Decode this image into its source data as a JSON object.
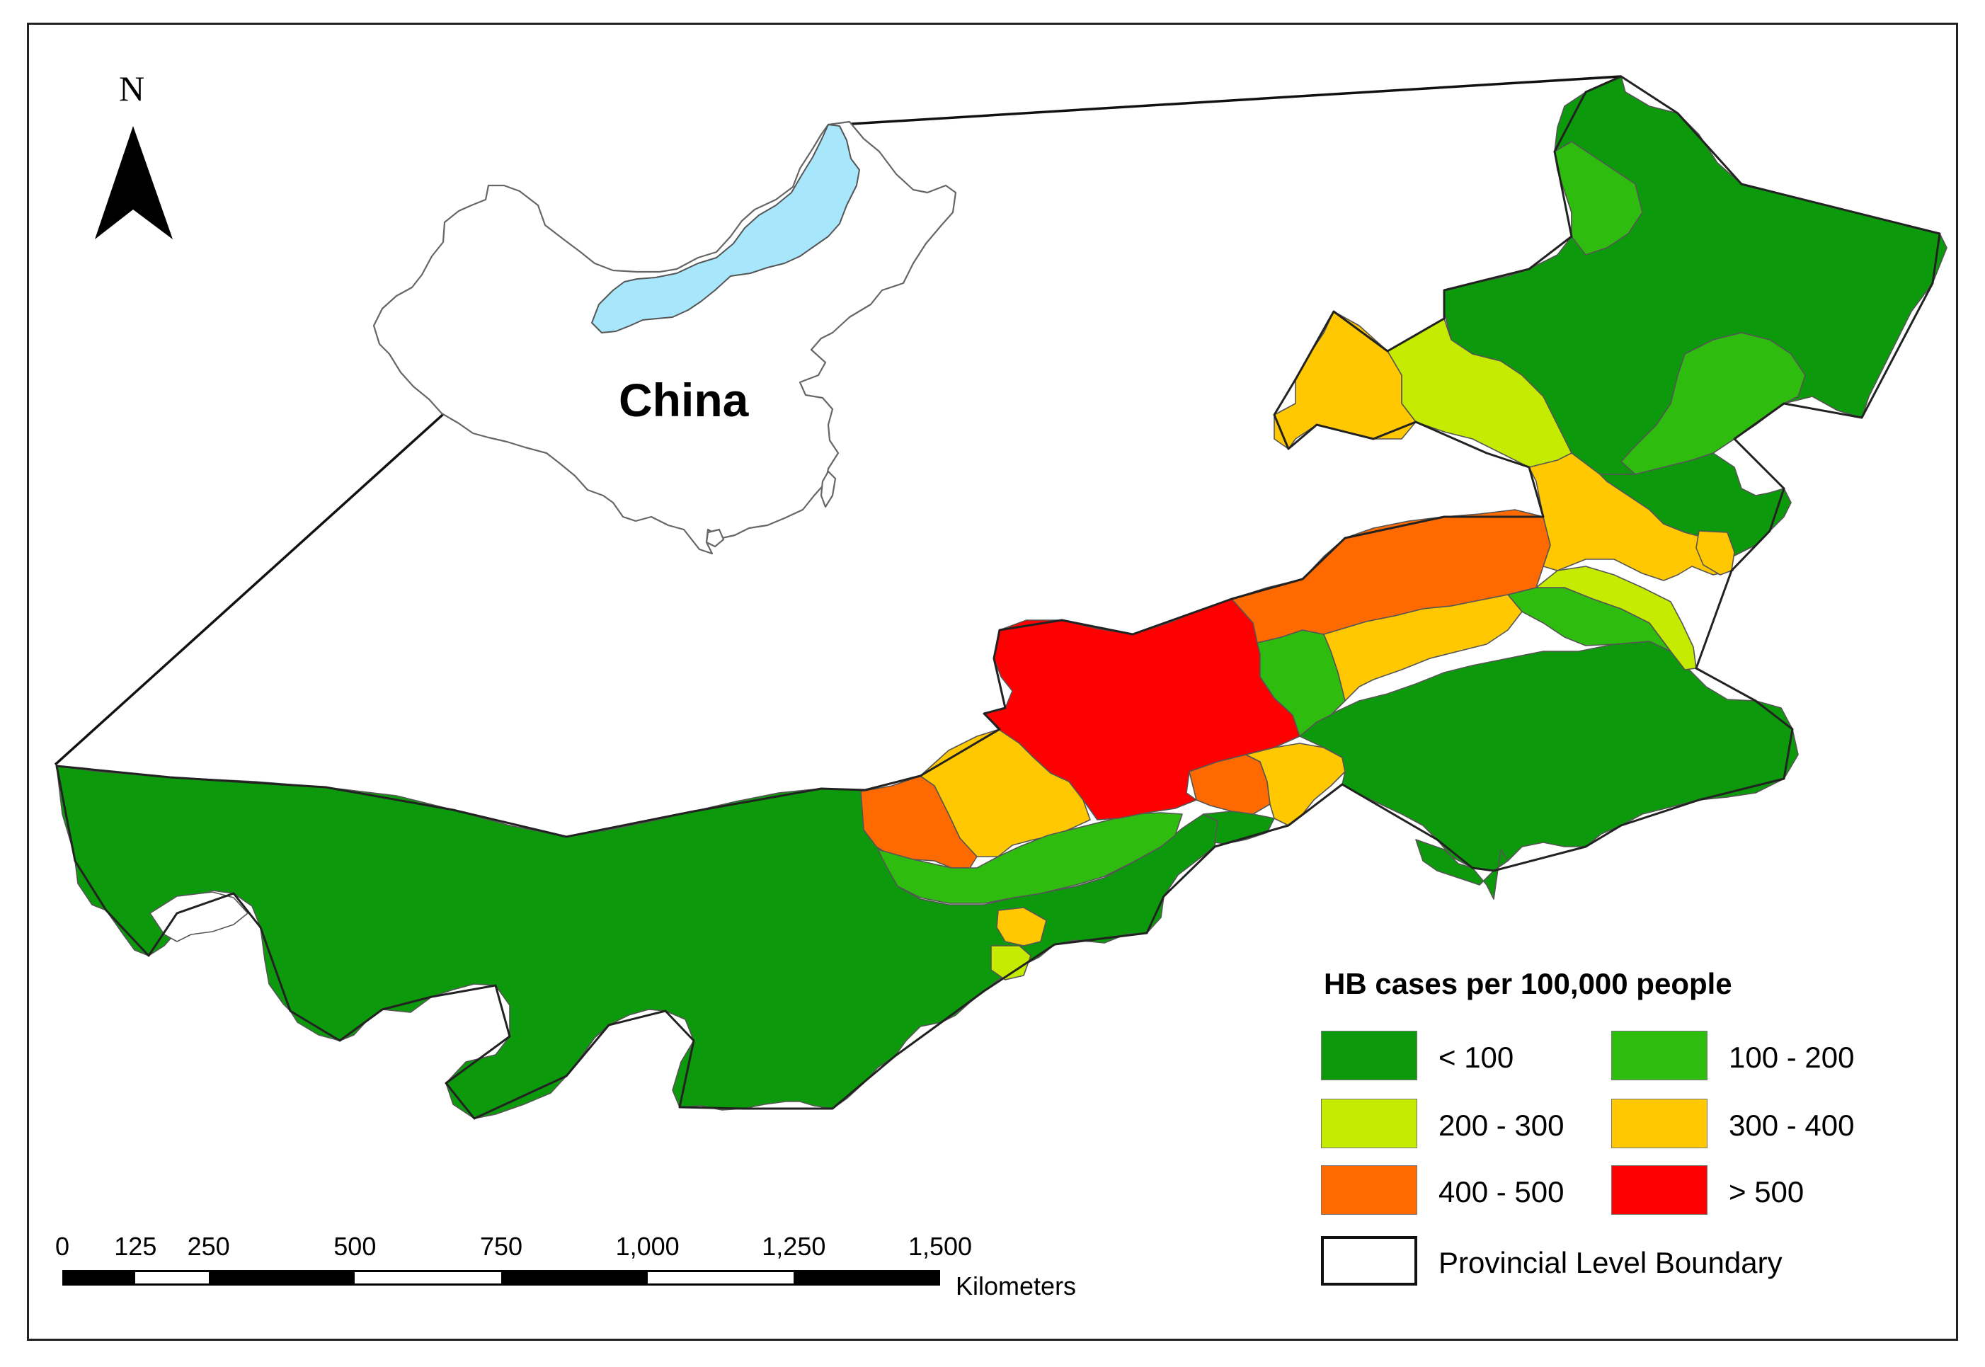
{
  "inset": {
    "label": "China"
  },
  "north_arrow": {
    "label": "N"
  },
  "legend": {
    "title": "HB cases per 100,000 people",
    "classes": [
      {
        "label": "< 100",
        "color": "#0c9a0c"
      },
      {
        "label": "100 - 200",
        "color": "#2ebd0e"
      },
      {
        "label": "200 - 300",
        "color": "#c5ec00"
      },
      {
        "label": "300 - 400",
        "color": "#ffc800"
      },
      {
        "label": "400 - 500",
        "color": "#ff6a00"
      },
      {
        "label": "> 500",
        "color": "#ff0000"
      }
    ],
    "boundary_label": "Provincial Level Boundary"
  },
  "scale_bar": {
    "ticks": [
      "0",
      "125",
      "250",
      "500",
      "750",
      "1,000",
      "1,250",
      "1,500"
    ],
    "tick_values": [
      0,
      125,
      250,
      500,
      750,
      1000,
      1250,
      1500
    ],
    "units": "Kilometers"
  },
  "colors": {
    "highlight_province": "#a8e6fb"
  }
}
